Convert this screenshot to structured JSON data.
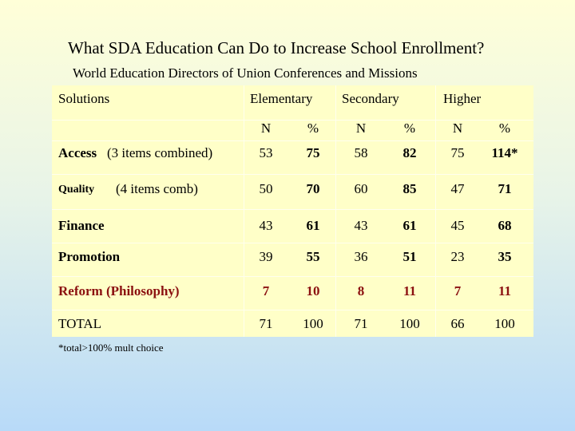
{
  "header": {
    "title": "What SDA Education Can Do to Increase School Enrollment?",
    "subtitle": "World Education Directors of Union Conferences and Missions"
  },
  "table": {
    "columns": [
      "Solutions",
      "Elementary",
      "Secondary",
      "Higher"
    ],
    "subcolumns": [
      "N",
      "%",
      "N",
      "%",
      "N",
      "%"
    ],
    "rows": [
      {
        "label": "Access",
        "note": "(3 items combined)",
        "values": [
          53,
          75,
          58,
          82,
          75,
          "114*"
        ]
      },
      {
        "label": "Quality",
        "note": "(4 items comb)",
        "values": [
          50,
          70,
          60,
          85,
          47,
          71
        ]
      },
      {
        "label": "Finance",
        "values": [
          43,
          61,
          43,
          61,
          45,
          68
        ]
      },
      {
        "label": "Promotion",
        "values": [
          39,
          55,
          36,
          51,
          23,
          35
        ]
      },
      {
        "label": "Reform (Philosophy)",
        "values": [
          7,
          10,
          8,
          11,
          7,
          11
        ]
      },
      {
        "label": "TOTAL",
        "values": [
          71,
          100,
          71,
          100,
          66,
          100
        ]
      }
    ],
    "footnote": "*total>100% mult choice"
  }
}
